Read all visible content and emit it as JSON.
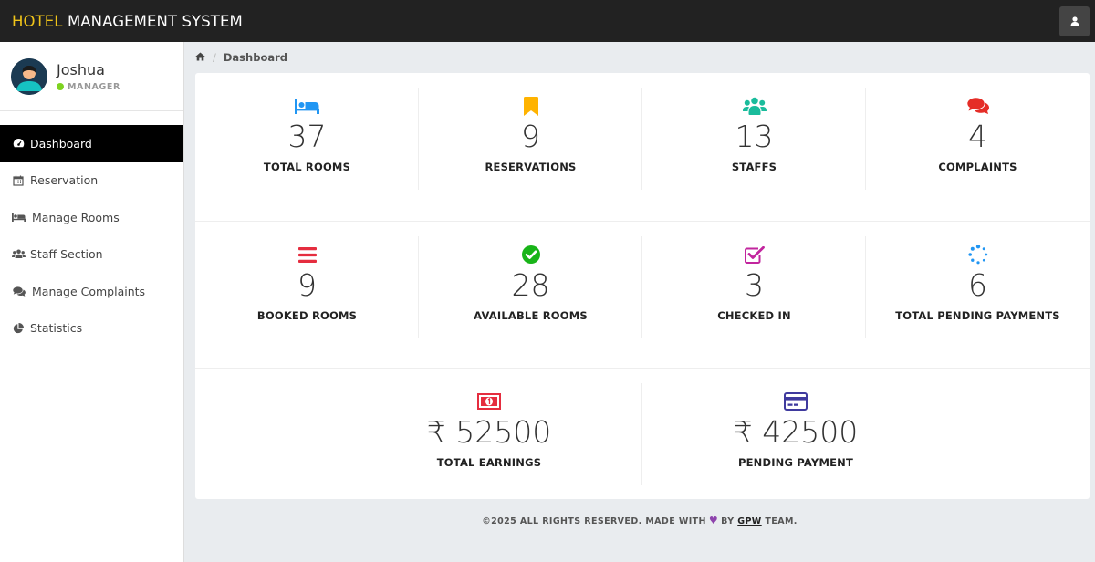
{
  "header": {
    "brand_prefix": "HOTEL",
    "brand_rest": " MANAGEMENT SYSTEM",
    "brand_accent": "#f0c419"
  },
  "profile": {
    "name": "Joshua",
    "role": "MANAGER",
    "status_color": "#7ed321"
  },
  "sidebar": {
    "items": [
      {
        "label": "Dashboard",
        "icon": "dashboard-icon",
        "active": true
      },
      {
        "label": "Reservation",
        "icon": "calendar-icon"
      },
      {
        "label": "Manage Rooms",
        "icon": "bed-icon"
      },
      {
        "label": "Staff Section",
        "icon": "users-icon"
      },
      {
        "label": "Manage Complaints",
        "icon": "comments-icon"
      },
      {
        "label": "Statistics",
        "icon": "pie-chart-icon"
      }
    ]
  },
  "breadcrumb": {
    "home_icon": "home-icon",
    "current": "Dashboard"
  },
  "stats": {
    "row1": [
      {
        "value": "37",
        "label": "TOTAL ROOMS",
        "icon": "bed-icon",
        "color": "#2196f3"
      },
      {
        "value": "9",
        "label": "RESERVATIONS",
        "icon": "bookmark-icon",
        "color": "#ffb300"
      },
      {
        "value": "13",
        "label": "STAFFS",
        "icon": "users-icon",
        "color": "#1abc9c"
      },
      {
        "value": "4",
        "label": "COMPLAINTS",
        "icon": "comments-icon",
        "color": "#e52d27"
      }
    ],
    "row2": [
      {
        "value": "9",
        "label": "BOOKED ROOMS",
        "icon": "bars-icon",
        "color": "#e52d3f"
      },
      {
        "value": "28",
        "label": "AVAILABLE ROOMS",
        "icon": "check-circle-icon",
        "color": "#18b418"
      },
      {
        "value": "3",
        "label": "CHECKED IN",
        "icon": "check-square-icon",
        "color": "#c2259e"
      },
      {
        "value": "6",
        "label": "TOTAL PENDING PAYMENTS",
        "icon": "spinner-icon",
        "color": "#2196f3"
      }
    ],
    "row3": [
      {
        "value": "₹ 52500",
        "label": "TOTAL EARNINGS",
        "icon": "money-icon",
        "color": "#e52d3f"
      },
      {
        "value": "₹ 42500",
        "label": "PENDING PAYMENT",
        "icon": "credit-card-icon",
        "color": "#3f3a9e"
      }
    ]
  },
  "footer": {
    "prefix": "©2025 ALL RIGHTS RESERVED. MADE WITH",
    "by": "BY",
    "team_link": "GPW",
    "suffix": "TEAM.",
    "heart_icon": "heart-icon",
    "heart_color": "#8e44ad"
  }
}
